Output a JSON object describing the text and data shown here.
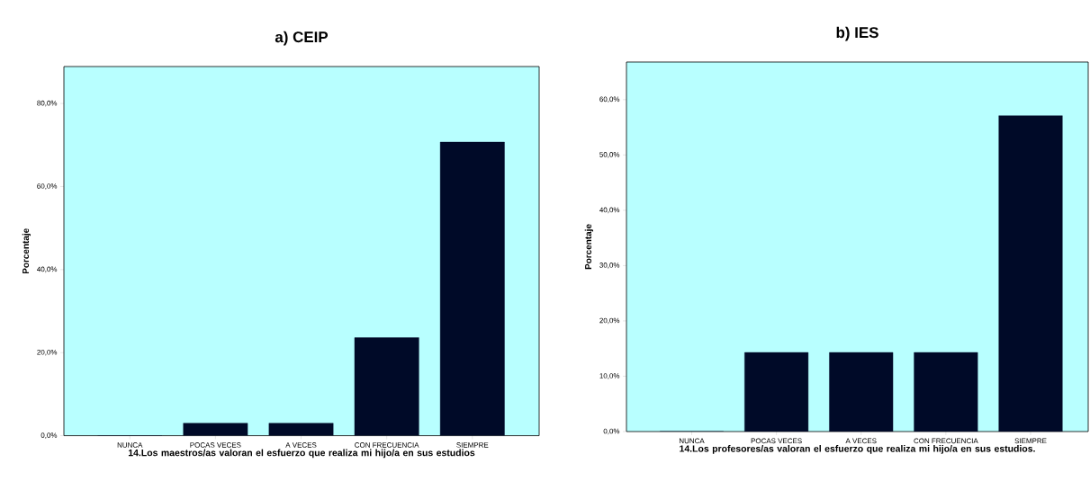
{
  "chart_data": [
    {
      "type": "bar",
      "title": "a)   CEIP",
      "xlabel": "14.Los maestros/as valoran el esfuerzo que realiza mi hijo/a en sus estudios",
      "ylabel": "Porcentaje",
      "categories": [
        "NUNCA",
        "POCAS VECES",
        "A VECES",
        "CON FRECUENCIA",
        "SIEMPRE"
      ],
      "values": [
        0,
        3.0,
        3.0,
        23.6,
        70.7
      ],
      "color": "#000a28",
      "ylim": [
        0,
        88.9
      ],
      "yticks": [
        {
          "value": 0,
          "label": "0,0%"
        },
        {
          "value": 20,
          "label": "20,0%"
        },
        {
          "value": 40,
          "label": "40,0%"
        },
        {
          "value": 60,
          "label": "60,0%"
        },
        {
          "value": 80,
          "label": "80,0%"
        }
      ]
    },
    {
      "type": "bar",
      "title": "b) IES",
      "xlabel": "14.Los profesores/as valoran el esfuerzo que realiza mi hijo/a en sus estudios.",
      "ylabel": "Porcentaje",
      "categories": [
        "NUNCA",
        "POCAS VECES",
        "A VECES",
        "CON FRECUENCIA",
        "SIEMPRE"
      ],
      "values": [
        0,
        14.3,
        14.3,
        14.3,
        57.1
      ],
      "color": "#000a28",
      "ylim": [
        0,
        66.8
      ],
      "yticks": [
        {
          "value": 0,
          "label": "0,0%"
        },
        {
          "value": 10,
          "label": "10,0%"
        },
        {
          "value": 20,
          "label": "20,0%"
        },
        {
          "value": 30,
          "label": "30,0%"
        },
        {
          "value": 40,
          "label": "40,0%"
        },
        {
          "value": 50,
          "label": "50,0%"
        },
        {
          "value": 60,
          "label": "60,0%"
        }
      ]
    }
  ]
}
